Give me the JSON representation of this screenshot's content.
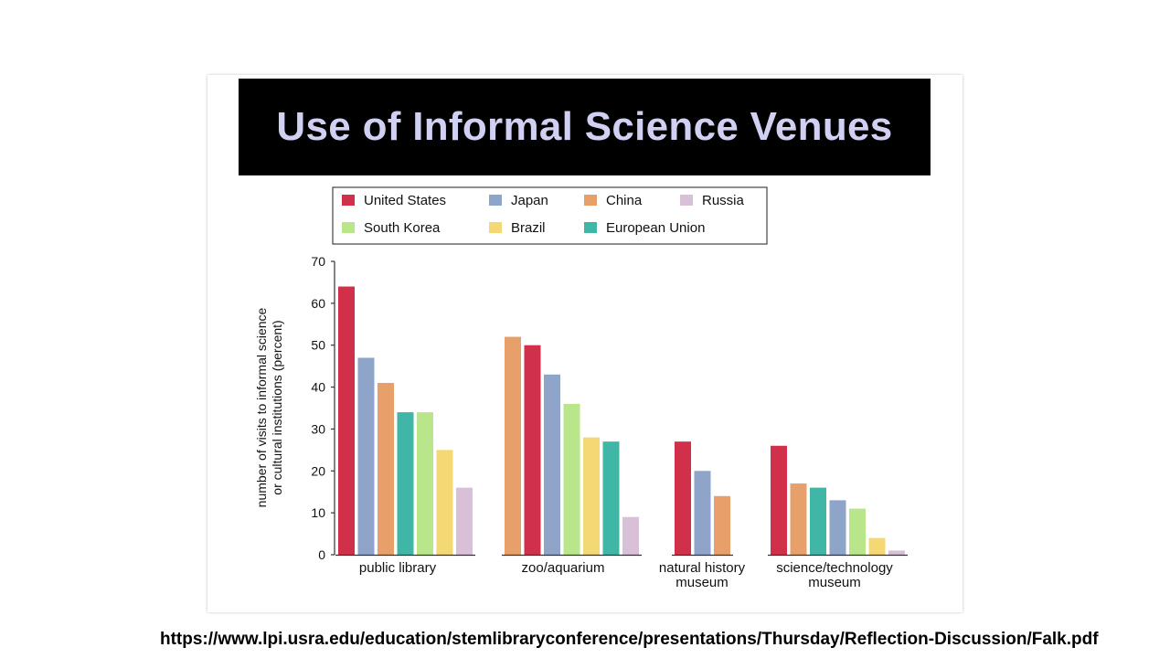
{
  "slide": {
    "title": "Use of Informal Science Venues",
    "source_url": "https://www.lpi.usra.edu/education/stemlibraryconference/presentations/Thursday/Reflection-Discussion/Falk.pdf"
  },
  "chart_data": {
    "type": "bar",
    "title": "",
    "xlabel": "",
    "ylabel": "number of visits to informal science or cultural institutions (percent)",
    "ylabel_lines": [
      "number of visits to informal science",
      "or cultural institutions (percent)"
    ],
    "ylim": [
      0,
      70
    ],
    "yticks": [
      0,
      10,
      20,
      30,
      40,
      50,
      60,
      70
    ],
    "grid": false,
    "legend_position": "top",
    "legend": [
      {
        "name": "United States",
        "color": "#d1304a"
      },
      {
        "name": "Japan",
        "color": "#8ea4c8"
      },
      {
        "name": "China",
        "color": "#e8a06a"
      },
      {
        "name": "Russia",
        "color": "#d8c0d8"
      },
      {
        "name": "South Korea",
        "color": "#b9e68a"
      },
      {
        "name": "Brazil",
        "color": "#f4d873"
      },
      {
        "name": "European Union",
        "color": "#40b6a6"
      }
    ],
    "groups": [
      {
        "label_lines": [
          "public library"
        ],
        "bars": [
          {
            "series": "United States",
            "value": 64
          },
          {
            "series": "Japan",
            "value": 47
          },
          {
            "series": "China",
            "value": 41
          },
          {
            "series": "European Union",
            "value": 34
          },
          {
            "series": "South Korea",
            "value": 34
          },
          {
            "series": "Brazil",
            "value": 25
          },
          {
            "series": "Russia",
            "value": 16
          }
        ]
      },
      {
        "label_lines": [
          "zoo/aquarium"
        ],
        "bars": [
          {
            "series": "China",
            "value": 52
          },
          {
            "series": "United States",
            "value": 50
          },
          {
            "series": "Japan",
            "value": 43
          },
          {
            "series": "South Korea",
            "value": 36
          },
          {
            "series": "Brazil",
            "value": 28
          },
          {
            "series": "European Union",
            "value": 27
          },
          {
            "series": "Russia",
            "value": 9
          }
        ]
      },
      {
        "label_lines": [
          "natural history",
          "museum"
        ],
        "bars": [
          {
            "series": "United States",
            "value": 27
          },
          {
            "series": "Japan",
            "value": 20
          },
          {
            "series": "China",
            "value": 14
          }
        ]
      },
      {
        "label_lines": [
          "science/technology",
          "museum"
        ],
        "bars": [
          {
            "series": "United States",
            "value": 26
          },
          {
            "series": "China",
            "value": 17
          },
          {
            "series": "European Union",
            "value": 16
          },
          {
            "series": "Japan",
            "value": 13
          },
          {
            "series": "South Korea",
            "value": 11
          },
          {
            "series": "Brazil",
            "value": 4
          },
          {
            "series": "Russia",
            "value": 1
          }
        ]
      }
    ]
  }
}
